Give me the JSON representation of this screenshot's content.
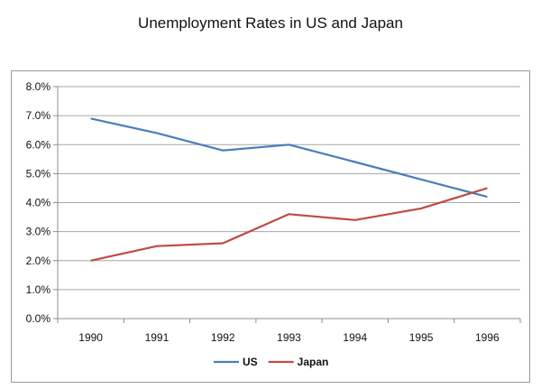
{
  "chart_data": {
    "type": "line",
    "title": "Unemployment Rates in US and Japan",
    "xlabel": "",
    "ylabel": "",
    "categories": [
      "1990",
      "1991",
      "1992",
      "1993",
      "1994",
      "1995",
      "1996"
    ],
    "series": [
      {
        "name": "US",
        "color": "#4a7ebb",
        "values": [
          6.9,
          6.4,
          5.8,
          6.0,
          5.4,
          4.8,
          4.2
        ]
      },
      {
        "name": "Japan",
        "color": "#be4b48",
        "values": [
          2.0,
          2.5,
          2.6,
          3.6,
          3.4,
          3.8,
          4.5
        ]
      }
    ],
    "ylim": [
      0,
      8
    ],
    "yticks": [
      0,
      1,
      2,
      3,
      4,
      5,
      6,
      7,
      8
    ],
    "ytick_labels": [
      "0.0%",
      "1.0%",
      "2.0%",
      "3.0%",
      "4.0%",
      "5.0%",
      "6.0%",
      "7.0%",
      "8.0%"
    ],
    "grid": true,
    "legend_position": "bottom"
  }
}
